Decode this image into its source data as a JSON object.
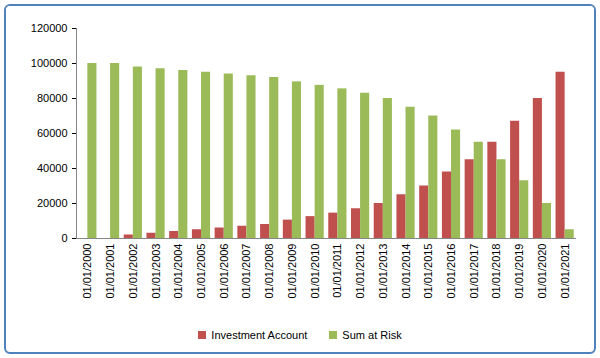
{
  "chart_data": {
    "type": "bar",
    "categories": [
      "01/01/2000",
      "01/01/2001",
      "01/01/2002",
      "01/01/2003",
      "01/01/2004",
      "01/01/2005",
      "01/01/2006",
      "01/01/2007",
      "01/01/2008",
      "01/01/2009",
      "01/01/2010",
      "01/01/2011",
      "01/01/2012",
      "01/01/2013",
      "01/01/2014",
      "01/01/2015",
      "01/01/2016",
      "01/01/2017",
      "01/01/2018",
      "01/01/2019",
      "01/01/2020",
      "01/01/2021"
    ],
    "series": [
      {
        "name": "Investment Account",
        "color": "#c0504d",
        "values": [
          0,
          0,
          2000,
          3000,
          4000,
          5000,
          6000,
          7000,
          8000,
          10500,
          12500,
          14500,
          17000,
          20000,
          25000,
          30000,
          38000,
          45000,
          55000,
          67000,
          80000,
          95000
        ]
      },
      {
        "name": "Sum at Risk",
        "color": "#9bbb59",
        "values": [
          100000,
          100000,
          98000,
          97000,
          96000,
          95000,
          94000,
          93000,
          92000,
          89500,
          87500,
          85500,
          83000,
          80000,
          75000,
          70000,
          62000,
          55000,
          45000,
          33000,
          20000,
          5000
        ]
      }
    ],
    "ylim": [
      0,
      120000
    ],
    "yticks": [
      0,
      20000,
      40000,
      60000,
      80000,
      100000,
      120000
    ],
    "grid": false,
    "legend": "bottom"
  }
}
